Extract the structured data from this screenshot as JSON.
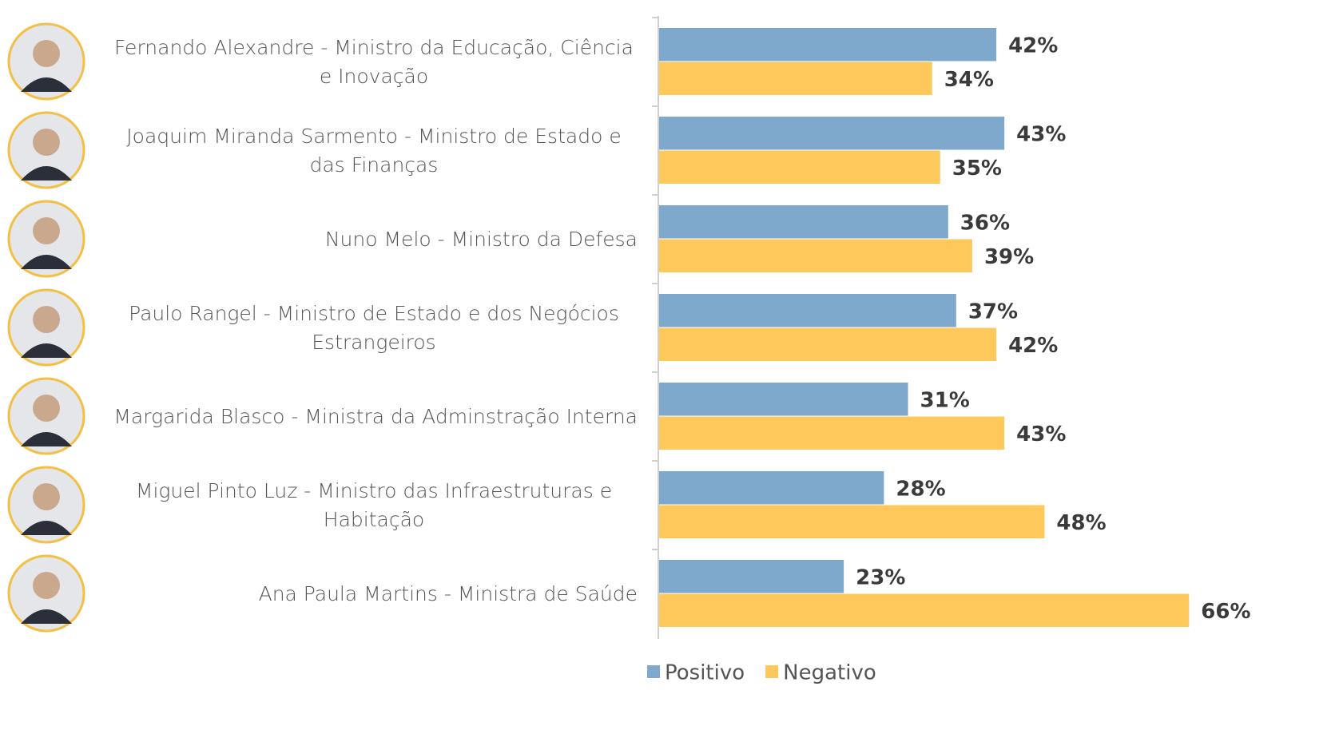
{
  "chart_data": {
    "type": "bar",
    "orientation": "horizontal",
    "categories": [
      "Fernando Alexandre - Ministro da Educação, Ciência e Inovação",
      "Joaquim Miranda Sarmento - Ministro de Estado e das Finanças",
      "Nuno Melo - Ministro da Defesa",
      "Paulo Rangel - Ministro de Estado e dos Negócios Estrangeiros",
      "Margarida Blasco - Ministra da Adminstração Interna",
      "Miguel Pinto Luz - Ministro das Infraestruturas e Habitação",
      "Ana Paula Martins - Ministra de Saúde"
    ],
    "series": [
      {
        "name": "Positivo",
        "color": "#7fa9cc",
        "values": [
          42,
          43,
          36,
          37,
          31,
          28,
          23
        ],
        "value_labels": [
          "42%",
          "43%",
          "36%",
          "37%",
          "31%",
          "28%",
          "23%"
        ]
      },
      {
        "name": "Negativo",
        "color": "#fec85a",
        "values": [
          34,
          35,
          39,
          42,
          43,
          48,
          66
        ],
        "value_labels": [
          "34%",
          "35%",
          "39%",
          "42%",
          "43%",
          "48%",
          "66%"
        ]
      }
    ],
    "legend": "bottom"
  }
}
